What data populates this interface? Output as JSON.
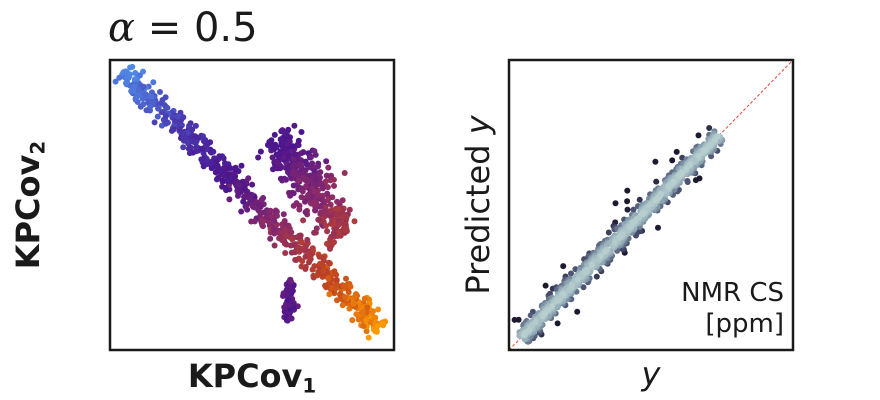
{
  "title": {
    "symbol": "α",
    "equals": " = ",
    "value": "0.5"
  },
  "left_panel": {
    "xlabel_main": "KPCov",
    "xlabel_sub": "1",
    "ylabel_main": "KPCov",
    "ylabel_sub": "2"
  },
  "right_panel": {
    "xlabel": "y",
    "ylabel_text": "Predicted ",
    "ylabel_var": "y",
    "annotation_line1": "NMR CS",
    "annotation_line2": "[ppm]"
  },
  "chart_data": [
    {
      "type": "scatter",
      "xlabel": "KPCov1",
      "ylabel": "KPCov2",
      "xlim": [
        0,
        1
      ],
      "ylim": [
        0,
        1
      ],
      "ticks": "none",
      "colormap": [
        "#4f86e6",
        "#4a3bb0",
        "#4a158f",
        "#8a2a6a",
        "#c2451e",
        "#ff9a00"
      ],
      "clusters": [
        {
          "name": "diagonal band",
          "x0": 0.05,
          "y0": 0.96,
          "x1": 0.95,
          "y1": 0.07,
          "spread": 0.012,
          "width": 0.03,
          "count": 650,
          "c0": 0.0,
          "c1": 1.0
        },
        {
          "name": "upper elongated cluster",
          "x0": 0.58,
          "y0": 0.74,
          "x1": 0.83,
          "y1": 0.4,
          "spread": 0.02,
          "width": 0.055,
          "count": 380,
          "c0": 0.38,
          "c1": 0.72
        },
        {
          "name": "small lower cluster",
          "x0": 0.63,
          "y0": 0.24,
          "x1": 0.63,
          "y1": 0.1,
          "spread": 0.004,
          "width": 0.022,
          "count": 90,
          "c0": 0.45,
          "c1": 0.45
        }
      ]
    },
    {
      "type": "scatter",
      "xlabel": "y",
      "ylabel": "Predicted y",
      "xlim": [
        0,
        1
      ],
      "ylim": [
        0,
        1
      ],
      "ticks": "none",
      "reference_line": "y = x",
      "reference_color": "#e0483a",
      "colormap": [
        "#1c1a2e",
        "#4a5070",
        "#8aa2b0",
        "#b7cfcf"
      ],
      "points_range": [
        0.04,
        0.74
      ],
      "count": 900
    }
  ]
}
